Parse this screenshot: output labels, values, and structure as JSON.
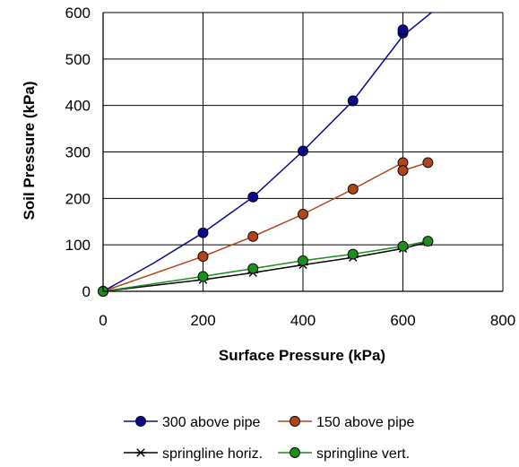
{
  "chart_data": {
    "type": "scatter",
    "xlabel": "Surface Pressure (kPa)",
    "ylabel": "Soil Pressure (kPa)",
    "xlim": [
      0,
      800
    ],
    "ylim": [
      0,
      600
    ],
    "xticks": [
      0,
      200,
      400,
      600,
      800
    ],
    "yticks": [
      0,
      100,
      200,
      300,
      400,
      500,
      600
    ],
    "grid": true,
    "legend_position": "bottom",
    "series": [
      {
        "name": "300 above pipe",
        "color": "#0a0a8c",
        "marker": "circle",
        "points": [
          [
            0,
            0
          ],
          [
            200,
            126
          ],
          [
            300,
            203
          ],
          [
            400,
            302
          ],
          [
            500,
            410
          ],
          [
            600,
            556
          ],
          [
            600,
            563
          ]
        ],
        "curve": [
          [
            0,
            0
          ],
          [
            100,
            60
          ],
          [
            200,
            126
          ],
          [
            300,
            203
          ],
          [
            400,
            302
          ],
          [
            500,
            410
          ],
          [
            600,
            550
          ],
          [
            680,
            620
          ]
        ]
      },
      {
        "name": "150 above pipe",
        "color": "#b2441a",
        "marker": "circle",
        "points": [
          [
            0,
            0
          ],
          [
            200,
            75
          ],
          [
            300,
            118
          ],
          [
            400,
            166
          ],
          [
            500,
            220
          ],
          [
            600,
            277
          ],
          [
            600,
            260
          ],
          [
            650,
            277
          ]
        ],
        "curve": [
          [
            0,
            0
          ],
          [
            200,
            75
          ],
          [
            300,
            118
          ],
          [
            400,
            166
          ],
          [
            500,
            220
          ],
          [
            600,
            277
          ],
          [
            600,
            260
          ],
          [
            650,
            277
          ]
        ]
      },
      {
        "name": "springline horiz.",
        "color": "#000000",
        "marker": "asterisk",
        "points": [
          [
            0,
            0
          ],
          [
            200,
            25
          ],
          [
            300,
            40
          ],
          [
            400,
            57
          ],
          [
            500,
            73
          ],
          [
            600,
            92
          ],
          [
            650,
            106
          ]
        ],
        "curve": [
          [
            0,
            0
          ],
          [
            200,
            25
          ],
          [
            300,
            40
          ],
          [
            400,
            57
          ],
          [
            500,
            73
          ],
          [
            600,
            92
          ],
          [
            650,
            106
          ]
        ]
      },
      {
        "name": "springline vert.",
        "color": "#1f8c1f",
        "marker": "circle",
        "points": [
          [
            0,
            0
          ],
          [
            200,
            32
          ],
          [
            300,
            49
          ],
          [
            400,
            66
          ],
          [
            500,
            80
          ],
          [
            600,
            97
          ],
          [
            650,
            108
          ]
        ],
        "curve": [
          [
            0,
            0
          ],
          [
            200,
            32
          ],
          [
            300,
            49
          ],
          [
            400,
            66
          ],
          [
            500,
            80
          ],
          [
            600,
            97
          ],
          [
            650,
            108
          ]
        ]
      }
    ]
  }
}
